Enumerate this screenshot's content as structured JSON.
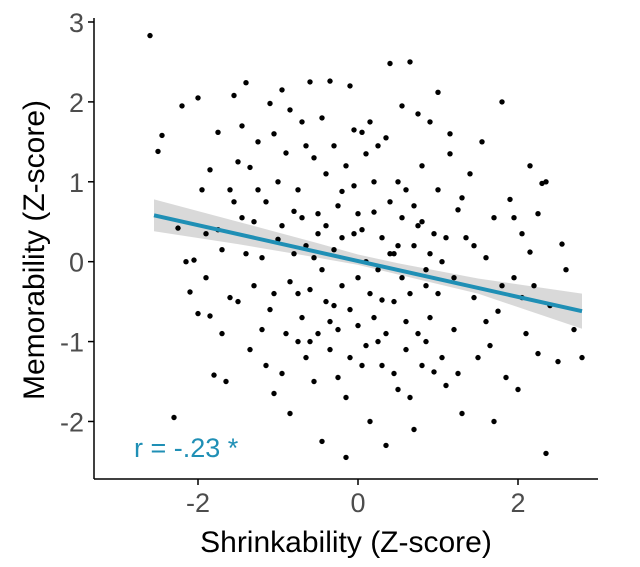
{
  "colors": {
    "point": "#000000",
    "fit_line": "#1f8fb5",
    "ci_band": "#d2d2d2",
    "axis": "#000000",
    "annotation": "#1f8fb5"
  },
  "chart_data": {
    "type": "scatter",
    "title": "",
    "xlabel": "Shrinkability (Z-score)",
    "ylabel": "Memorability (Z-score)",
    "xlim": [
      -3.3,
      3.0
    ],
    "ylim": [
      -2.72,
      3.05
    ],
    "x_ticks": [
      -2,
      0,
      2
    ],
    "x_tick_labels": [
      "-2",
      "0",
      "2"
    ],
    "y_ticks": [
      -2,
      -1,
      0,
      1,
      2,
      3
    ],
    "y_tick_labels": [
      "-2",
      "-1",
      "0",
      "1",
      "2",
      "3"
    ],
    "grid": false,
    "legend": "none",
    "annotation": {
      "text": "r =  -.23 *",
      "x": -2.8,
      "y": -2.32
    },
    "fit": {
      "x": [
        -2.55,
        2.8
      ],
      "y": [
        0.58,
        -0.62
      ]
    },
    "confidence_band": {
      "x": [
        -2.55,
        -1.5,
        -0.5,
        0.0,
        0.5,
        1.5,
        2.8
      ],
      "lower": [
        0.38,
        0.22,
        0.05,
        -0.04,
        -0.16,
        -0.4,
        -0.84
      ],
      "upper": [
        0.78,
        0.5,
        0.23,
        0.09,
        -0.02,
        -0.21,
        -0.4
      ]
    },
    "points": [
      [
        -2.6,
        2.83
      ],
      [
        -2.5,
        1.38
      ],
      [
        -2.45,
        1.58
      ],
      [
        -2.3,
        -1.95
      ],
      [
        -2.25,
        0.42
      ],
      [
        -2.2,
        1.95
      ],
      [
        -2.15,
        0.0
      ],
      [
        -2.1,
        -0.38
      ],
      [
        -2.05,
        0.02
      ],
      [
        -2.0,
        2.05
      ],
      [
        -1.95,
        0.9
      ],
      [
        -1.9,
        0.35
      ],
      [
        -1.85,
        -0.68
      ],
      [
        -1.8,
        -1.42
      ],
      [
        -1.75,
        1.62
      ],
      [
        -1.7,
        0.15
      ],
      [
        -1.65,
        -1.5
      ],
      [
        -1.6,
        -0.45
      ],
      [
        -1.55,
        2.08
      ],
      [
        -1.5,
        1.25
      ],
      [
        -1.45,
        0.55
      ],
      [
        -1.4,
        2.24
      ],
      [
        -1.35,
        1.18
      ],
      [
        -1.3,
        -0.3
      ],
      [
        -1.25,
        1.5
      ],
      [
        -1.2,
        -0.85
      ],
      [
        -1.15,
        0.75
      ],
      [
        -1.1,
        1.98
      ],
      [
        -1.05,
        -1.65
      ],
      [
        -1.0,
        0.28
      ],
      [
        -0.95,
        2.15
      ],
      [
        -0.9,
        1.36
      ],
      [
        -0.85,
        -1.9
      ],
      [
        -0.8,
        0.63
      ],
      [
        -0.75,
        -0.4
      ],
      [
        -0.7,
        1.75
      ],
      [
        -0.65,
        -1.2
      ],
      [
        -0.6,
        2.25
      ],
      [
        -0.55,
        0.05
      ],
      [
        -0.5,
        -0.9
      ],
      [
        -0.45,
        -2.25
      ],
      [
        -0.4,
        1.1
      ],
      [
        -0.35,
        2.26
      ],
      [
        -0.3,
        -0.55
      ],
      [
        -0.25,
        -1.45
      ],
      [
        -0.2,
        0.88
      ],
      [
        -0.15,
        -2.45
      ],
      [
        -0.1,
        2.2
      ],
      [
        -0.05,
        0.35
      ],
      [
        0.0,
        -0.2
      ],
      [
        0.05,
        1.62
      ],
      [
        0.1,
        -1.05
      ],
      [
        0.15,
        -2.0
      ],
      [
        0.2,
        0.62
      ],
      [
        0.25,
        1.45
      ],
      [
        0.3,
        -0.48
      ],
      [
        0.35,
        -2.3
      ],
      [
        0.4,
        2.48
      ],
      [
        0.45,
        0.1
      ],
      [
        0.5,
        -1.6
      ],
      [
        0.55,
        1.95
      ],
      [
        0.6,
        -0.75
      ],
      [
        0.65,
        2.5
      ],
      [
        0.7,
        -2.1
      ],
      [
        0.75,
        0.45
      ],
      [
        0.8,
        1.2
      ],
      [
        0.85,
        -0.3
      ],
      [
        0.9,
        1.75
      ],
      [
        0.95,
        -1.38
      ],
      [
        1.0,
        2.12
      ],
      [
        1.05,
        0.0
      ],
      [
        1.1,
        -1.55
      ],
      [
        1.15,
        1.35
      ],
      [
        1.2,
        -0.85
      ],
      [
        1.25,
        0.65
      ],
      [
        1.3,
        -1.9
      ],
      [
        1.35,
        0.3
      ],
      [
        1.4,
        1.1
      ],
      [
        1.45,
        -0.45
      ],
      [
        1.5,
        -1.2
      ],
      [
        1.55,
        1.5
      ],
      [
        1.6,
        0.05
      ],
      [
        1.65,
        -1.05
      ],
      [
        1.7,
        0.55
      ],
      [
        1.75,
        -0.62
      ],
      [
        1.8,
        2.0
      ],
      [
        1.85,
        -1.45
      ],
      [
        1.9,
        0.78
      ],
      [
        1.95,
        -0.2
      ],
      [
        2.0,
        -1.6
      ],
      [
        2.05,
        0.35
      ],
      [
        2.1,
        -0.9
      ],
      [
        2.15,
        1.2
      ],
      [
        2.2,
        -0.3
      ],
      [
        2.25,
        -1.15
      ],
      [
        2.3,
        0.98
      ],
      [
        2.35,
        -2.4
      ],
      [
        2.4,
        -0.55
      ],
      [
        2.5,
        -1.25
      ],
      [
        2.55,
        0.22
      ],
      [
        2.6,
        -0.1
      ],
      [
        2.7,
        -0.85
      ],
      [
        2.8,
        -1.2
      ],
      [
        2.35,
        1.0
      ],
      [
        2.15,
        0.12
      ],
      [
        1.7,
        -2.0
      ],
      [
        -1.2,
        0.05
      ],
      [
        -1.05,
        -0.4
      ],
      [
        -0.95,
        0.45
      ],
      [
        -0.85,
        -0.25
      ],
      [
        -0.75,
        0.9
      ],
      [
        -0.7,
        -0.7
      ],
      [
        -0.65,
        0.2
      ],
      [
        -0.6,
        -0.35
      ],
      [
        -0.55,
        1.3
      ],
      [
        -0.5,
        0.6
      ],
      [
        -0.45,
        -0.1
      ],
      [
        -0.4,
        0.45
      ],
      [
        -0.35,
        -0.75
      ],
      [
        -0.3,
        0.15
      ],
      [
        -0.25,
        0.7
      ],
      [
        -0.2,
        -0.3
      ],
      [
        -0.15,
        1.2
      ],
      [
        -0.1,
        -0.6
      ],
      [
        -0.05,
        0.95
      ],
      [
        0.0,
        -0.8
      ],
      [
        0.05,
        0.4
      ],
      [
        0.1,
        0.0
      ],
      [
        0.15,
        -0.4
      ],
      [
        0.2,
        1.0
      ],
      [
        0.25,
        -0.1
      ],
      [
        0.3,
        0.3
      ],
      [
        0.35,
        -0.9
      ],
      [
        0.4,
        0.75
      ],
      [
        0.45,
        -0.5
      ],
      [
        0.5,
        0.2
      ],
      [
        0.55,
        -0.2
      ],
      [
        0.6,
        0.9
      ],
      [
        0.65,
        -0.4
      ],
      [
        0.7,
        0.2
      ],
      [
        0.75,
        -0.9
      ],
      [
        0.8,
        0.5
      ],
      [
        0.85,
        -0.1
      ],
      [
        0.9,
        -0.7
      ],
      [
        0.95,
        0.35
      ],
      [
        1.0,
        -0.4
      ],
      [
        -1.3,
        0.5
      ],
      [
        -1.1,
        -0.6
      ],
      [
        -1.0,
        1.0
      ],
      [
        -0.9,
        -0.9
      ],
      [
        -0.8,
        0.1
      ],
      [
        -0.7,
        0.55
      ],
      [
        -0.6,
        -1.0
      ],
      [
        -0.5,
        0.35
      ],
      [
        -0.4,
        -0.5
      ],
      [
        -0.3,
        1.45
      ],
      [
        -0.2,
        0.3
      ],
      [
        -0.1,
        -1.2
      ],
      [
        0.0,
        0.6
      ],
      [
        0.1,
        1.35
      ],
      [
        0.2,
        -0.7
      ],
      [
        0.3,
        -1.3
      ],
      [
        0.4,
        0.1
      ],
      [
        0.5,
        1.0
      ],
      [
        0.6,
        -1.1
      ],
      [
        0.7,
        0.7
      ],
      [
        0.8,
        -1.3
      ],
      [
        0.9,
        0.1
      ],
      [
        1.0,
        0.9
      ],
      [
        1.1,
        0.3
      ],
      [
        1.2,
        -0.2
      ],
      [
        1.3,
        0.8
      ],
      [
        -1.5,
        -0.5
      ],
      [
        -1.4,
        0.1
      ],
      [
        -1.6,
        0.9
      ],
      [
        -1.35,
        -1.1
      ],
      [
        -1.25,
        0.9
      ],
      [
        -1.15,
        -1.3
      ],
      [
        -0.95,
        -1.4
      ],
      [
        -0.75,
        -1.0
      ],
      [
        -0.55,
        -1.5
      ],
      [
        -0.35,
        -1.1
      ],
      [
        -0.15,
        -1.7
      ],
      [
        0.05,
        -1.3
      ],
      [
        0.25,
        -1.0
      ],
      [
        0.45,
        -1.4
      ],
      [
        0.65,
        -1.7
      ],
      [
        0.85,
        -1.0
      ],
      [
        1.05,
        -1.2
      ],
      [
        1.25,
        -1.4
      ],
      [
        -1.45,
        1.7
      ],
      [
        -1.05,
        1.6
      ],
      [
        -0.85,
        1.9
      ],
      [
        -0.45,
        1.8
      ],
      [
        -0.05,
        1.65
      ],
      [
        0.35,
        1.55
      ],
      [
        0.75,
        1.85
      ],
      [
        1.15,
        1.6
      ],
      [
        -0.65,
        1.45
      ],
      [
        0.15,
        1.75
      ],
      [
        0.55,
        0.55
      ],
      [
        -0.25,
        -0.85
      ],
      [
        1.45,
        0.2
      ],
      [
        1.6,
        -0.75
      ],
      [
        1.8,
        -0.3
      ],
      [
        1.95,
        0.55
      ],
      [
        2.05,
        -0.45
      ],
      [
        2.25,
        0.6
      ],
      [
        -1.75,
        0.4
      ],
      [
        -1.9,
        -0.2
      ],
      [
        -2.0,
        -0.65
      ],
      [
        -1.7,
        -0.9
      ],
      [
        -1.55,
        0.75
      ],
      [
        -1.85,
        1.15
      ]
    ]
  }
}
